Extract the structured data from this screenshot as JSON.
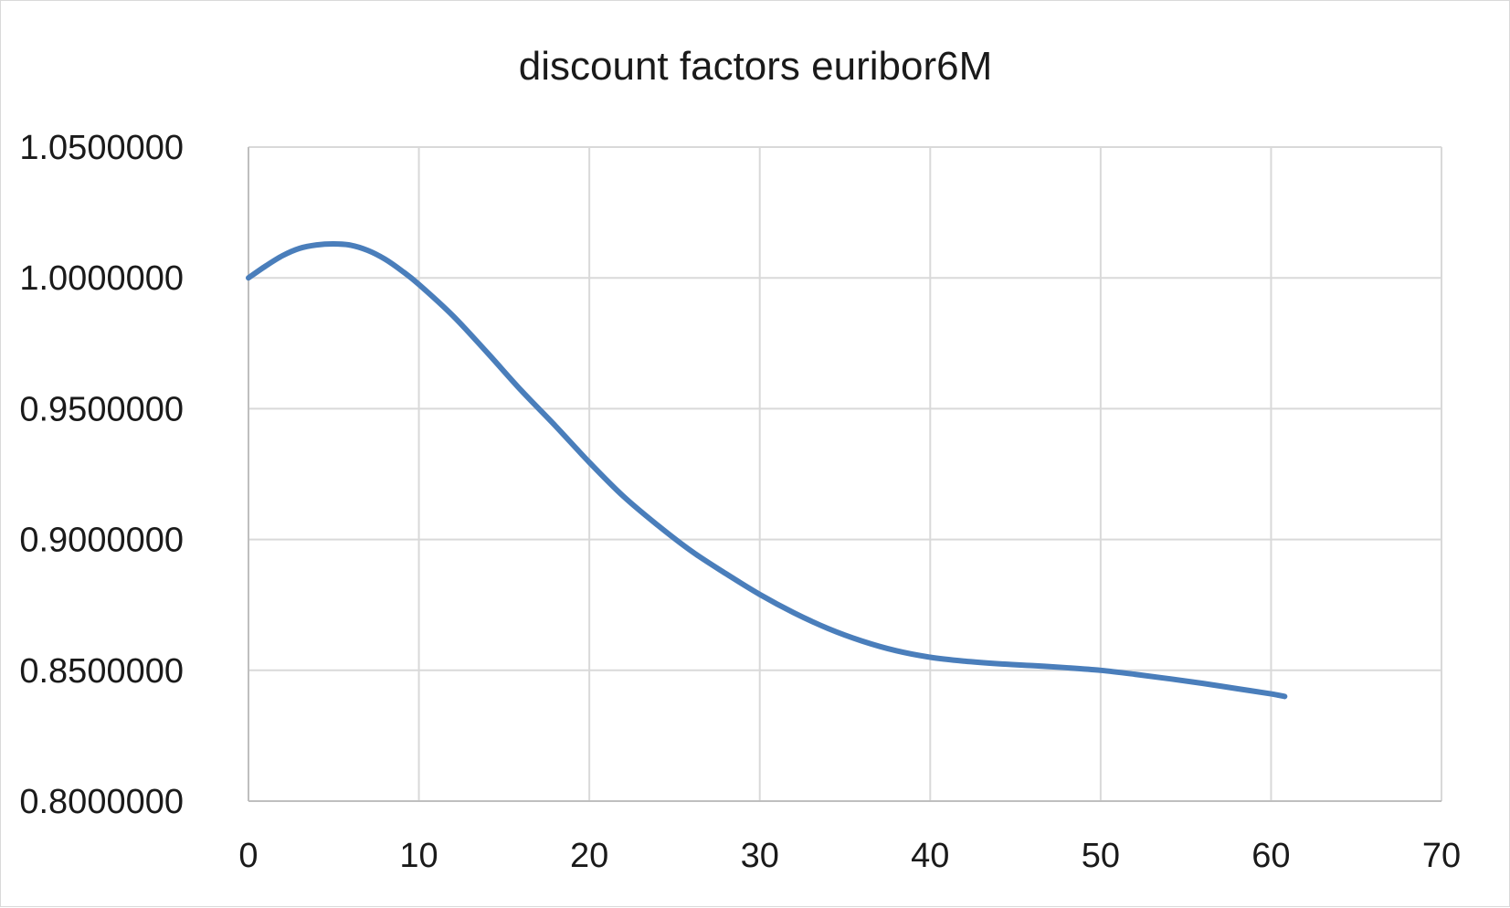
{
  "chart_data": {
    "type": "line",
    "title": "discount factors euribor6M",
    "xlabel": "",
    "ylabel": "",
    "xlim": [
      0,
      70
    ],
    "ylim": [
      0.8,
      1.05
    ],
    "x_ticks": [
      0,
      10,
      20,
      30,
      40,
      50,
      60,
      70
    ],
    "x_tick_labels": [
      "0",
      "10",
      "20",
      "30",
      "40",
      "50",
      "60",
      "70"
    ],
    "y_ticks": [
      0.8,
      0.85,
      0.9,
      0.95,
      1.0,
      1.05
    ],
    "y_tick_labels": [
      "0.8000000",
      "0.8500000",
      "0.9000000",
      "0.9500000",
      "1.0000000",
      "1.0500000"
    ],
    "grid": true,
    "legend": "none",
    "series": [
      {
        "color": "#4a7ebb",
        "x": [
          0,
          1,
          2,
          3,
          4,
          5,
          6,
          7,
          8,
          9,
          10,
          12,
          14,
          16,
          18,
          20,
          22,
          24,
          26,
          28,
          30,
          32,
          34,
          36,
          38,
          40,
          42,
          44,
          46,
          48,
          50,
          52,
          54,
          56,
          58,
          60,
          60.8
        ],
        "y": [
          1.0,
          1.0045,
          1.0085,
          1.0113,
          1.0126,
          1.013,
          1.0125,
          1.0105,
          1.0072,
          1.0027,
          0.9975,
          0.9855,
          0.9715,
          0.957,
          0.9435,
          0.9295,
          0.9165,
          0.9055,
          0.8955,
          0.887,
          0.879,
          0.872,
          0.866,
          0.8612,
          0.8575,
          0.855,
          0.8535,
          0.8525,
          0.8518,
          0.851,
          0.85,
          0.8485,
          0.8468,
          0.845,
          0.843,
          0.841,
          0.84
        ]
      }
    ]
  }
}
